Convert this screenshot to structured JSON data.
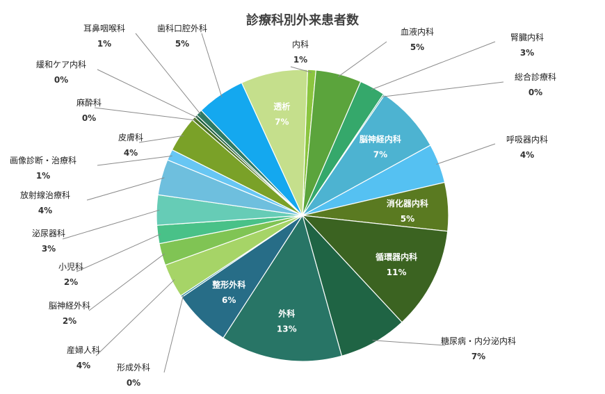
{
  "chart_data": {
    "type": "pie",
    "title": "診療科別外来患者数",
    "slices": [
      {
        "name": "内科",
        "label": "1%",
        "value": 0.9,
        "color": "#8bc53f"
      },
      {
        "name": "血液内科",
        "label": "5%",
        "value": 5.0,
        "color": "#5ba43c"
      },
      {
        "name": "腎臓内科",
        "label": "3%",
        "value": 2.8,
        "color": "#35a86b"
      },
      {
        "name": "総合診療科",
        "label": "0%",
        "value": 0.15,
        "color": "#2e9e8e"
      },
      {
        "name": "脳神経内科",
        "label": "7%",
        "value": 7.4,
        "color": "#4db3d1"
      },
      {
        "name": "呼吸器内科",
        "label": "4%",
        "value": 4.3,
        "color": "#55c1f2"
      },
      {
        "name": "消化器内科",
        "label": "5%",
        "value": 5.3,
        "color": "#5a7a21"
      },
      {
        "name": "循環器内科",
        "label": "11%",
        "value": 11.2,
        "color": "#3b6321"
      },
      {
        "name": "糖尿病・内分泌内科",
        "label": "7%",
        "value": 7.5,
        "color": "#1f6444"
      },
      {
        "name": "外科",
        "label": "13%",
        "value": 13.3,
        "color": "#287566"
      },
      {
        "name": "整形外科",
        "label": "6%",
        "value": 6.3,
        "color": "#276d87"
      },
      {
        "name": "形成外科",
        "label": "0%",
        "value": 0.2,
        "color": "#2a8c9e"
      },
      {
        "name": "産婦人科",
        "label": "4%",
        "value": 3.7,
        "color": "#a6d467"
      },
      {
        "name": "脳神経外科",
        "label": "2%",
        "value": 2.4,
        "color": "#80c454"
      },
      {
        "name": "小児科",
        "label": "2%",
        "value": 2.0,
        "color": "#49c188"
      },
      {
        "name": "泌尿器科",
        "label": "3%",
        "value": 3.3,
        "color": "#66ccb6"
      },
      {
        "name": "放射線治療科",
        "label": "4%",
        "value": 3.9,
        "color": "#6ebfde"
      },
      {
        "name": "画像診断・治療科",
        "label": "1%",
        "value": 1.2,
        "color": "#67c6f3"
      },
      {
        "name": "皮膚科",
        "label": "4%",
        "value": 3.9,
        "color": "#7aa128"
      },
      {
        "name": "麻酔科",
        "label": "0%",
        "value": 0.4,
        "color": "#4e7426"
      },
      {
        "name": "緩和ケア内科",
        "label": "0%",
        "value": 0.3,
        "color": "#1b5e3c"
      },
      {
        "name": "耳鼻咽喉科",
        "label": "1%",
        "value": 0.7,
        "color": "#2f7a63"
      },
      {
        "name": "歯科口腔外科",
        "label": "5%",
        "value": 5.3,
        "color": "#14a8ef"
      },
      {
        "name": "透析",
        "label": "7%",
        "value": 7.3,
        "color": "#c5df8c"
      }
    ],
    "start_angle_deg": 2,
    "legend": "none"
  }
}
